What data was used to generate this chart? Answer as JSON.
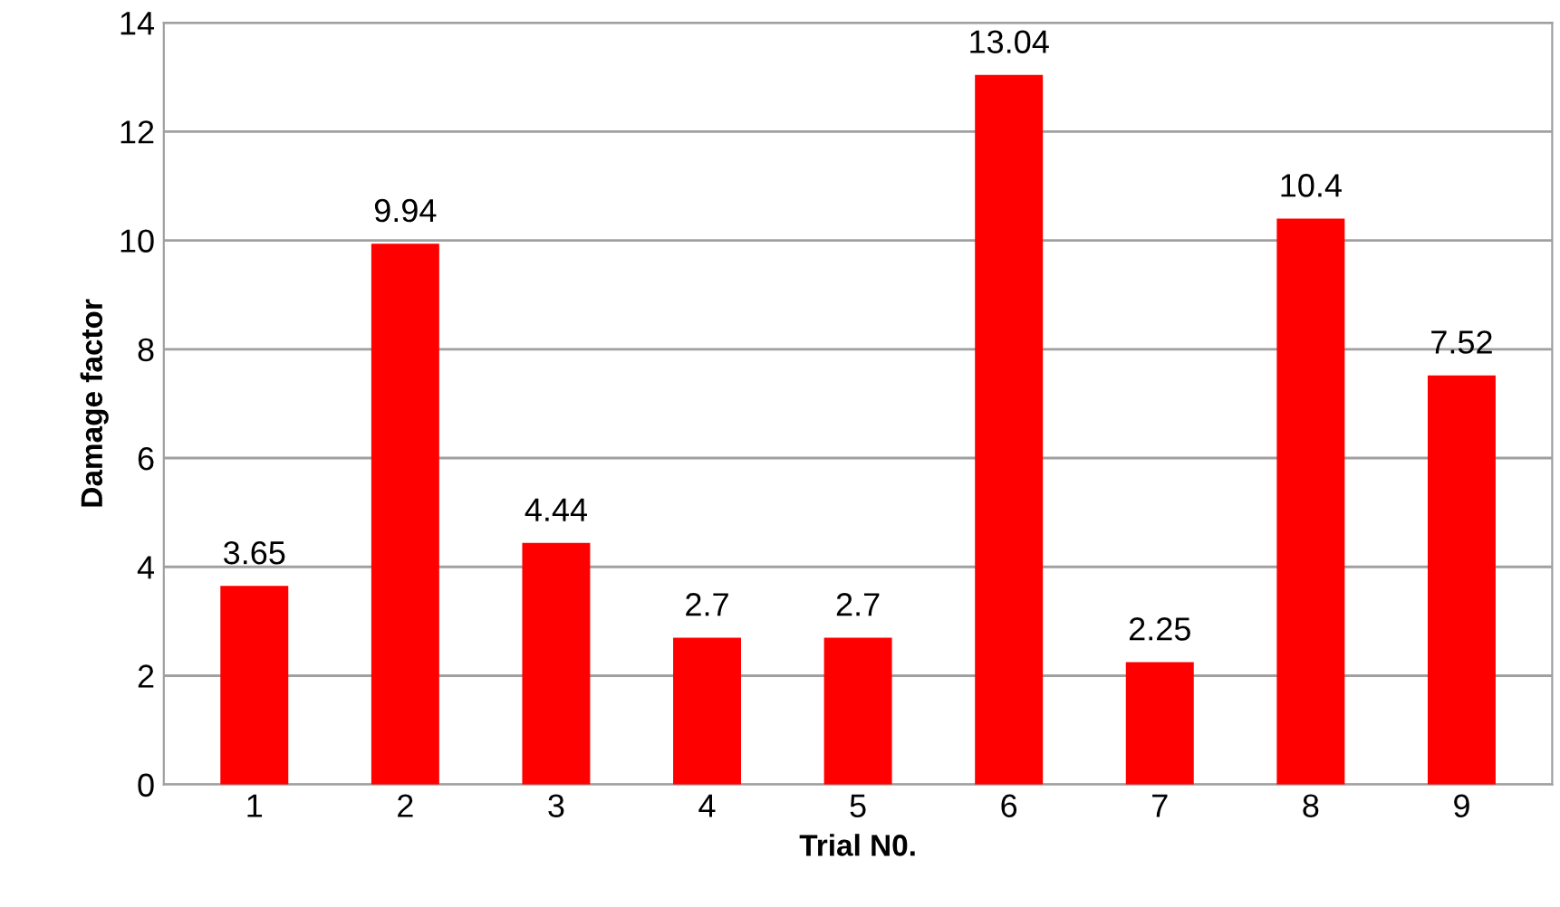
{
  "chart_data": {
    "type": "bar",
    "xlabel": "Trial N0.",
    "ylabel": "Damage factor",
    "categories": [
      "1",
      "2",
      "3",
      "4",
      "5",
      "6",
      "7",
      "8",
      "9"
    ],
    "values": [
      3.65,
      9.94,
      4.44,
      2.7,
      2.7,
      13.04,
      2.25,
      10.4,
      7.52
    ],
    "color": "#ff0000",
    "ylim": [
      0,
      14
    ],
    "yticks": [
      0,
      2,
      4,
      6,
      8,
      10,
      12,
      14
    ],
    "grid": "y",
    "data_labels": true
  }
}
